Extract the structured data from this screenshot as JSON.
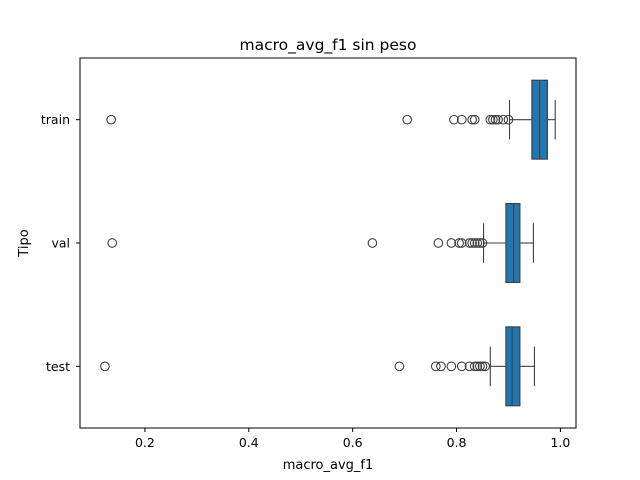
{
  "chart_data": {
    "type": "boxplot",
    "orientation": "horizontal",
    "title": "macro_avg_f1 sin peso",
    "xlabel": "macro_avg_f1",
    "ylabel": "Tipo",
    "xlim": [
      0.075,
      1.03
    ],
    "xticks": [
      0.2,
      0.4,
      0.6,
      0.8,
      1.0
    ],
    "xtick_labels": [
      "0.2",
      "0.4",
      "0.6",
      "0.8",
      "1.0"
    ],
    "categories": [
      "train",
      "val",
      "test"
    ],
    "grid": false,
    "box_color": "#1f77b4",
    "series": [
      {
        "category": "train",
        "whisker_low": 0.902,
        "q1": 0.945,
        "median": 0.96,
        "q3": 0.975,
        "whisker_high": 0.99,
        "outliers": [
          0.135,
          0.705,
          0.795,
          0.81,
          0.83,
          0.835,
          0.865,
          0.87,
          0.875,
          0.88,
          0.89,
          0.9
        ]
      },
      {
        "category": "val",
        "whisker_low": 0.852,
        "q1": 0.895,
        "median": 0.91,
        "q3": 0.922,
        "whisker_high": 0.948,
        "outliers": [
          0.137,
          0.638,
          0.765,
          0.79,
          0.805,
          0.81,
          0.825,
          0.83,
          0.835,
          0.84,
          0.845,
          0.85
        ]
      },
      {
        "category": "test",
        "whisker_low": 0.865,
        "q1": 0.895,
        "median": 0.907,
        "q3": 0.922,
        "whisker_high": 0.95,
        "outliers": [
          0.123,
          0.69,
          0.76,
          0.77,
          0.79,
          0.81,
          0.825,
          0.835,
          0.84,
          0.845,
          0.85,
          0.855
        ]
      }
    ]
  }
}
